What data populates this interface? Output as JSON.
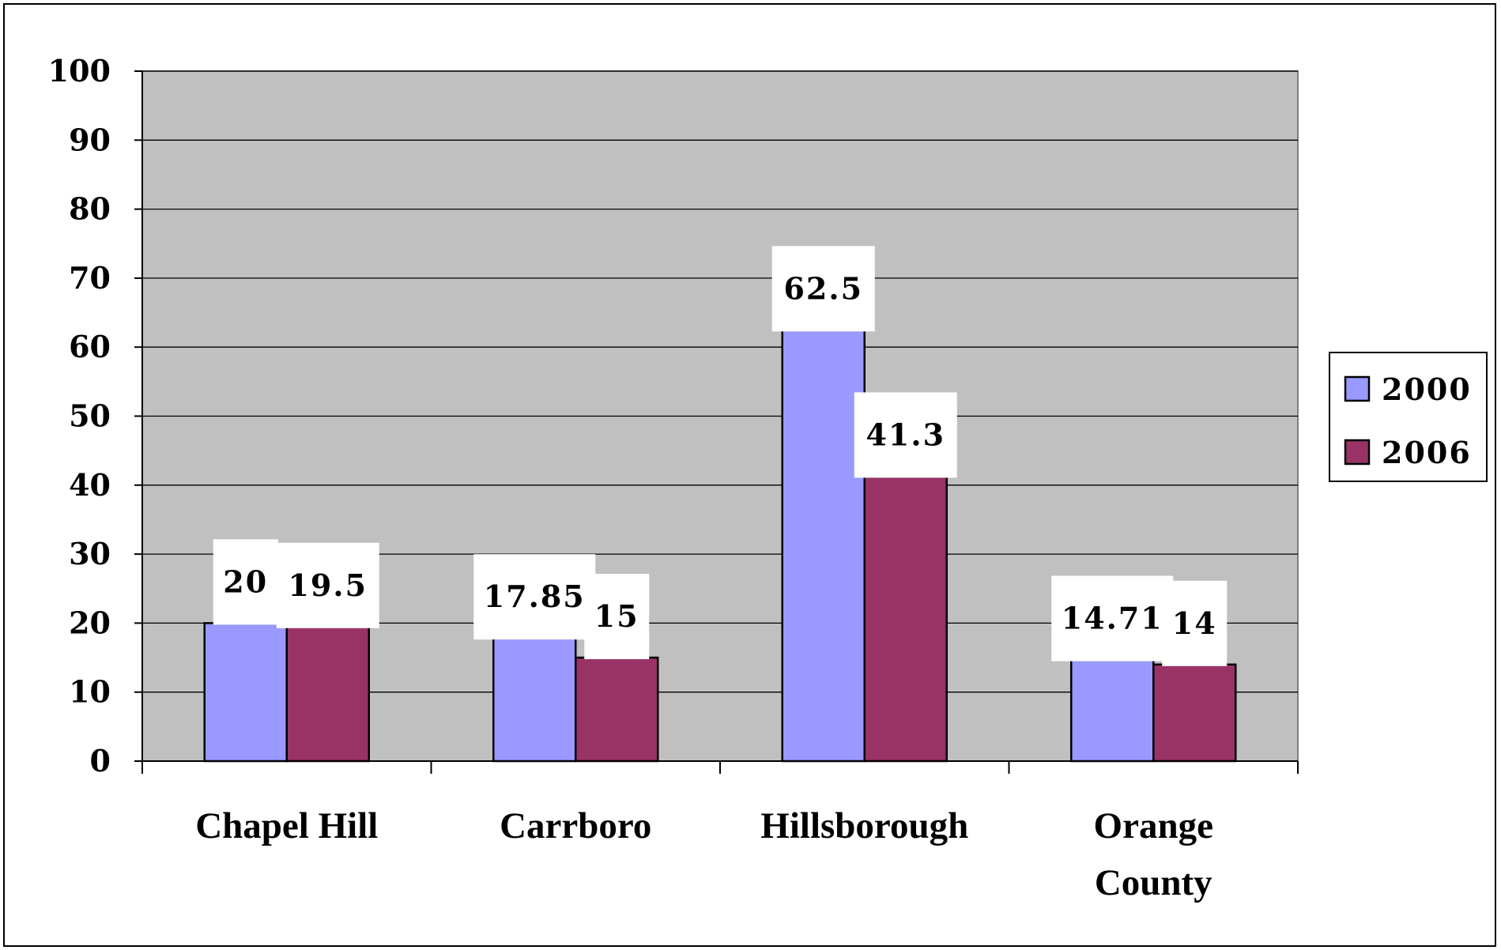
{
  "chart_data": {
    "type": "bar",
    "title": "",
    "xlabel": "",
    "ylabel": "",
    "categories": [
      [
        "Chapel Hill"
      ],
      [
        "Carrboro"
      ],
      [
        "Hillsborough"
      ],
      [
        "Orange",
        "County"
      ]
    ],
    "series": [
      {
        "name": "2000",
        "color": "#9999ff",
        "values": [
          20,
          17.85,
          62.5,
          14.71
        ],
        "labels": [
          "20",
          "17.85",
          "62.5",
          "14.71"
        ]
      },
      {
        "name": "2006",
        "color": "#993366",
        "values": [
          19.5,
          15,
          41.3,
          14
        ],
        "labels": [
          "19.5",
          "15",
          "41.3",
          "14"
        ]
      }
    ],
    "ylim": [
      0,
      100
    ],
    "yticks": [
      0,
      10,
      20,
      30,
      40,
      50,
      60,
      70,
      80,
      90,
      100
    ],
    "grid": true,
    "plot_background": "#c0c0c0",
    "legend": "right"
  }
}
